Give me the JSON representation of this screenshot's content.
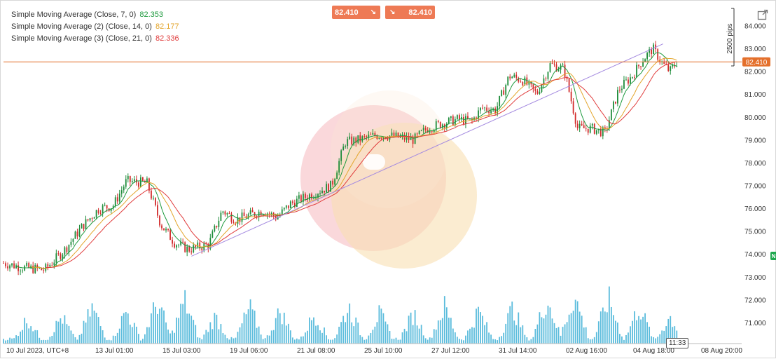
{
  "header": {
    "buy_price": "82.410",
    "sell_price": "82.410",
    "buy_arrow_icon": "arrow-down-right-icon",
    "sell_arrow_icon": "arrow-down-right-icon",
    "popout_icon": "popout-icon"
  },
  "legend": [
    {
      "label": "Simple Moving Average (Close, 7, 0)",
      "value": "82.353",
      "color": "#1e9a3e"
    },
    {
      "label": "Simple Moving Average (2) (Close, 14, 0)",
      "value": "82.177",
      "color": "#e3a52b"
    },
    {
      "label": "Simple Moving Average (3) (Close, 21, 0)",
      "value": "82.336",
      "color": "#e03c3c"
    }
  ],
  "pips_label": "2500 pips",
  "current_price": "82.410",
  "right_tab_label": "N",
  "timestamp_label": "11:33",
  "colors": {
    "up_candle": "#1e8c3a",
    "down_candle": "#d22b2b",
    "volume": "#5bbcdc",
    "price_line": "#e4702c",
    "trendline": "#a58be0",
    "ma7": "#1e9a3e",
    "ma14": "#e3a52b",
    "ma21": "#e03c3c"
  },
  "chart_data": {
    "type": "candlestick",
    "y_ticks": [
      "84.000",
      "83.000",
      "82.000",
      "81.000",
      "80.000",
      "79.000",
      "78.000",
      "77.000",
      "76.000",
      "75.000",
      "74.000",
      "73.000",
      "72.000",
      "71.000"
    ],
    "x_ticks": [
      "10 Jul 2023, UTC+8",
      "13 Jul 01:00",
      "15 Jul 03:00",
      "19 Jul 06:00",
      "21 Jul 08:00",
      "25 Jul 10:00",
      "27 Jul 12:00",
      "31 Jul 14:00",
      "02 Aug 16:00",
      "04 Aug 18:00",
      "08 Aug 20:00"
    ],
    "ylim": [
      70.4,
      84.7
    ],
    "close_series": [
      {
        "x": 0.0,
        "y": 73.6
      },
      {
        "x": 3.0,
        "y": 73.4
      },
      {
        "x": 6.0,
        "y": 73.3
      },
      {
        "x": 9.0,
        "y": 74.2
      },
      {
        "x": 11.5,
        "y": 75.2
      },
      {
        "x": 14.0,
        "y": 76.0
      },
      {
        "x": 16.0,
        "y": 76.1
      },
      {
        "x": 18.0,
        "y": 77.2
      },
      {
        "x": 21.0,
        "y": 77.1
      },
      {
        "x": 23.0,
        "y": 75.3
      },
      {
        "x": 25.0,
        "y": 74.5
      },
      {
        "x": 27.0,
        "y": 74.2
      },
      {
        "x": 30.0,
        "y": 74.4
      },
      {
        "x": 32.0,
        "y": 75.9
      },
      {
        "x": 34.0,
        "y": 75.5
      },
      {
        "x": 36.0,
        "y": 75.7
      },
      {
        "x": 38.0,
        "y": 75.9
      },
      {
        "x": 40.0,
        "y": 75.6
      },
      {
        "x": 42.0,
        "y": 76.2
      },
      {
        "x": 45.0,
        "y": 76.6
      },
      {
        "x": 48.0,
        "y": 77.0
      },
      {
        "x": 50.0,
        "y": 78.9
      },
      {
        "x": 52.0,
        "y": 79.0
      },
      {
        "x": 54.5,
        "y": 79.2
      },
      {
        "x": 56.0,
        "y": 79.2
      },
      {
        "x": 58.0,
        "y": 79.1
      },
      {
        "x": 60.0,
        "y": 79.0
      },
      {
        "x": 62.0,
        "y": 79.5
      },
      {
        "x": 64.0,
        "y": 79.7
      },
      {
        "x": 66.5,
        "y": 79.9
      },
      {
        "x": 68.5,
        "y": 79.8
      },
      {
        "x": 70.0,
        "y": 80.4
      },
      {
        "x": 72.0,
        "y": 80.3
      },
      {
        "x": 74.0,
        "y": 81.8
      },
      {
        "x": 76.0,
        "y": 81.6
      },
      {
        "x": 78.0,
        "y": 81.0
      },
      {
        "x": 80.0,
        "y": 82.3
      },
      {
        "x": 82.0,
        "y": 82.1
      },
      {
        "x": 84.0,
        "y": 79.5
      },
      {
        "x": 86.0,
        "y": 79.5
      },
      {
        "x": 88.0,
        "y": 79.3
      },
      {
        "x": 90.0,
        "y": 81.2
      },
      {
        "x": 92.0,
        "y": 81.8
      },
      {
        "x": 93.5,
        "y": 82.5
      },
      {
        "x": 95.0,
        "y": 83.0
      },
      {
        "x": 96.5,
        "y": 82.3
      },
      {
        "x": 97.5,
        "y": 82.0
      },
      {
        "x": 98.5,
        "y": 82.4
      }
    ],
    "ma_end_values": {
      "ma7": 82.353,
      "ma14": 82.177,
      "ma21": 82.336
    },
    "volume_peaks": [
      {
        "x": 3.5,
        "v": 0.42
      },
      {
        "x": 8.5,
        "v": 0.45
      },
      {
        "x": 13.0,
        "v": 0.6
      },
      {
        "x": 18.0,
        "v": 0.55
      },
      {
        "x": 22.5,
        "v": 0.7
      },
      {
        "x": 26.5,
        "v": 0.72
      },
      {
        "x": 31.0,
        "v": 0.45
      },
      {
        "x": 36.0,
        "v": 0.6
      },
      {
        "x": 40.5,
        "v": 0.55
      },
      {
        "x": 45.5,
        "v": 0.5
      },
      {
        "x": 50.5,
        "v": 0.62
      },
      {
        "x": 55.0,
        "v": 0.5
      },
      {
        "x": 60.0,
        "v": 0.5
      },
      {
        "x": 64.5,
        "v": 0.62
      },
      {
        "x": 69.5,
        "v": 0.55
      },
      {
        "x": 74.5,
        "v": 0.6
      },
      {
        "x": 79.5,
        "v": 0.75
      },
      {
        "x": 83.5,
        "v": 0.8
      },
      {
        "x": 88.5,
        "v": 0.75
      },
      {
        "x": 93.0,
        "v": 0.62
      },
      {
        "x": 97.5,
        "v": 0.45
      }
    ],
    "trendline": [
      {
        "x": 27.5,
        "y": 73.9
      },
      {
        "x": 96.5,
        "y": 83.2
      }
    ]
  }
}
